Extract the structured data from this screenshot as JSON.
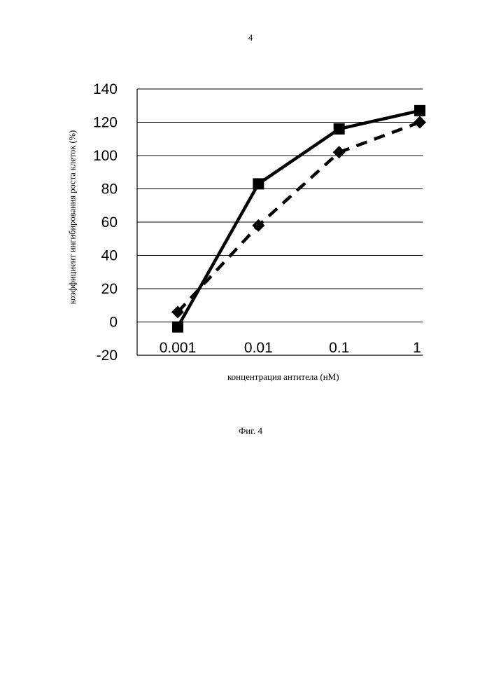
{
  "page": {
    "number": "4",
    "caption": "Фиг. 4"
  },
  "chart_data": {
    "type": "line",
    "ylabel": "коэффициент ингибирования роста клеток (%)",
    "xlabel": "концентрация антитела (нМ)",
    "categories": [
      "0.001",
      "0.01",
      "0.1",
      "1"
    ],
    "ylim": [
      -20,
      140
    ],
    "yticks": [
      -20,
      0,
      20,
      40,
      60,
      80,
      100,
      120,
      140
    ],
    "grid": true,
    "series": [
      {
        "marker": "square",
        "line": "solid",
        "color": "#000000",
        "values": [
          -3,
          83,
          116,
          127
        ]
      },
      {
        "marker": "diamond",
        "line": "dashed",
        "color": "#000000",
        "values": [
          6,
          58,
          102,
          120
        ]
      }
    ]
  }
}
